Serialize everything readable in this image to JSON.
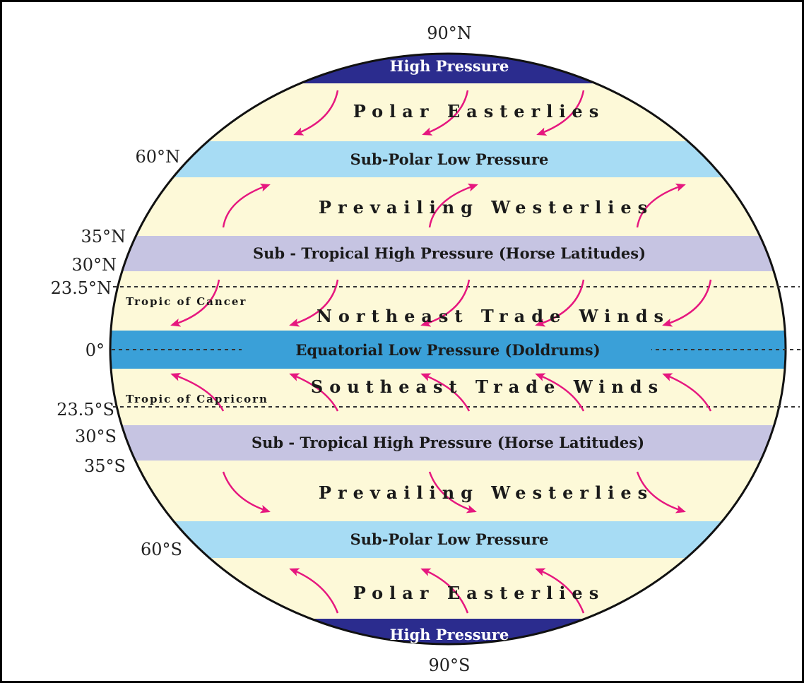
{
  "latitudes": {
    "n90": "90°N",
    "n60": "60°N",
    "n35": "35°N",
    "n30": "30°N",
    "n23": "23.5°N",
    "eq": "0°",
    "s23": "23.5°S",
    "s30": "30°S",
    "s35": "35°S",
    "s60": "60°S",
    "s90": "90°S"
  },
  "bands": {
    "north_high": "High Pressure",
    "north_subpolar": "Sub-Polar Low Pressure",
    "north_subtropical": "Sub - Tropical High Pressure  (Horse Latitudes)",
    "equatorial": "Equatorial Low   Pressure (Doldrums)",
    "south_subtropical": "Sub - Tropical High  Pressure (Horse Latitudes)",
    "south_subpolar": "Sub-Polar Low Pressure",
    "south_high": "High Pressure"
  },
  "winds": {
    "north_polar": "Polar  Easterlies",
    "north_westerlies": "Prevailing  Westerlies",
    "northeast_trade": "Northeast Trade Winds",
    "southeast_trade": "Southeast Trade Winds",
    "south_westerlies": "Prevailing  Westerlies",
    "south_polar": "Polar  Easterlies"
  },
  "tropics": {
    "cancer": "Tropic of Cancer",
    "capricorn": "Tropic of Capricorn"
  },
  "colors": {
    "globe_fill": "#fdf9d8",
    "high_pressure": "#2b2c8e",
    "subpolar_low": "#a7dcf4",
    "subtropical_high": "#c6c4e2",
    "equatorial_low": "#3aa0d8",
    "arrow": "#e6177f"
  }
}
